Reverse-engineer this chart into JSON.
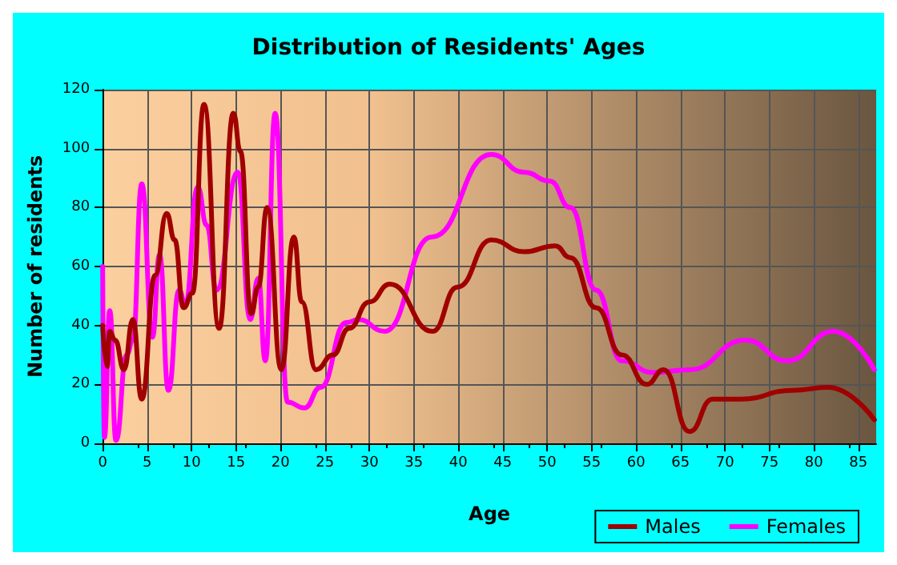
{
  "chart_data": {
    "type": "line",
    "title": "Distribution of Residents' Ages",
    "xlabel": "Age",
    "ylabel": "Number of residents",
    "xlim": [
      0,
      87
    ],
    "xticks": [
      0,
      5,
      10,
      15,
      20,
      25,
      30,
      35,
      40,
      45,
      50,
      55,
      60,
      65,
      70,
      75,
      80,
      85
    ],
    "ylim": [
      0,
      120
    ],
    "yticks": [
      0,
      20,
      40,
      60,
      80,
      100,
      120
    ],
    "grid": true,
    "legend": "bottom right",
    "marker": "none",
    "line_style": "solid",
    "series": [
      {
        "name": "Males",
        "color": "#a00000",
        "x": [
          0,
          0.5,
          0.8,
          1.4,
          2.4,
          3.4,
          4.4,
          5.9,
          7.2,
          8.1,
          9.1,
          10.1,
          11.4,
          13.1,
          14.7,
          15.5,
          16.7,
          17.5,
          18.5,
          20.1,
          21.5,
          22.4,
          24,
          25.9,
          27.7,
          30,
          32.3,
          37.1,
          39.9,
          43.7,
          47.4,
          50.9,
          52.6,
          55.5,
          58.4,
          61.2,
          63.1,
          66,
          68.6,
          71.8,
          77.6,
          81.6,
          86.8
        ],
        "values": [
          40,
          26,
          38,
          35,
          25,
          42,
          15,
          57,
          78,
          69,
          46,
          51,
          115,
          39,
          112,
          99,
          44,
          53,
          80,
          25,
          70,
          48,
          25,
          30,
          39,
          48,
          54,
          38,
          53,
          69,
          65,
          67,
          63,
          46,
          30,
          20,
          25,
          4,
          15,
          15,
          18,
          19,
          8
        ]
      },
      {
        "name": "Females",
        "color": "#ff00ff",
        "x": [
          0,
          0.2,
          0.8,
          1.5,
          2.7,
          3.4,
          4.4,
          5.6,
          6.4,
          7.4,
          8.6,
          9.3,
          10.7,
          11.7,
          12.8,
          15.2,
          16.6,
          17.5,
          18.3,
          19.4,
          20.8,
          22.7,
          24.5,
          27.4,
          28.8,
          31.7,
          37,
          43.7,
          47.4,
          50.3,
          52.6,
          55.5,
          58.4,
          61.9,
          66,
          72.3,
          77,
          82.2,
          86.8
        ],
        "values": [
          60,
          2,
          45,
          1,
          30,
          35,
          88,
          36,
          64,
          18,
          52,
          47,
          87,
          74,
          52,
          92,
          42,
          56,
          28,
          112,
          14,
          12,
          19,
          41,
          42,
          38,
          70,
          98,
          92,
          89,
          80,
          52,
          28,
          24,
          25,
          35,
          28,
          38,
          25
        ]
      }
    ]
  }
}
